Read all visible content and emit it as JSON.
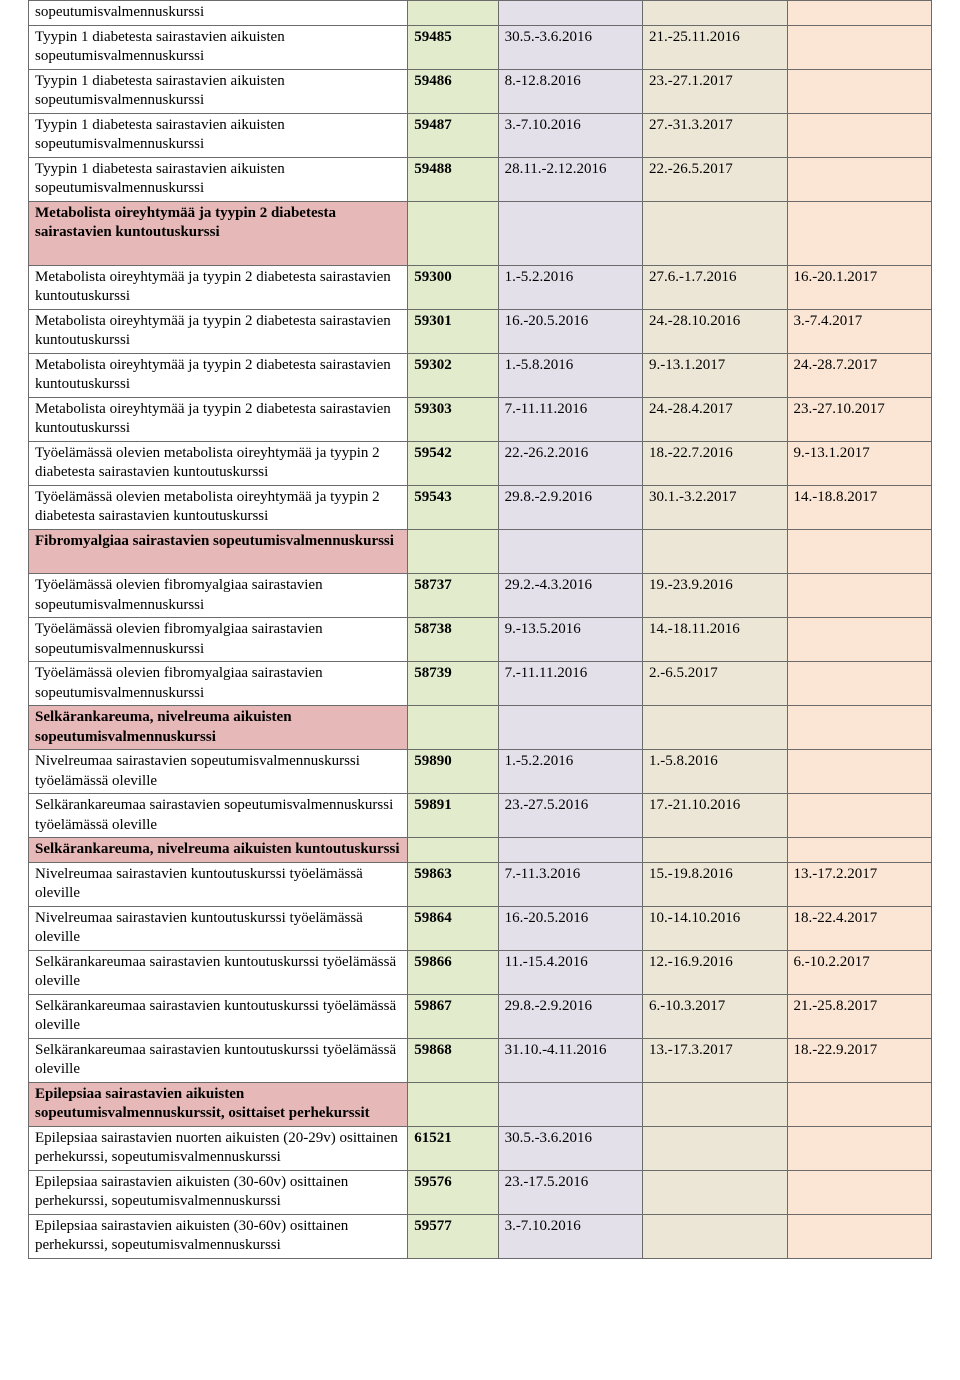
{
  "colors": {
    "col_id_bg": "#e2eccd",
    "col_d1_bg": "#e3e0ea",
    "col_d2_bg": "#ece6d6",
    "col_d3_bg": "#fbe6d5",
    "section_bg": "#e6b8b7",
    "name_bg": "#ffffff"
  },
  "rows": [
    {
      "type": "data",
      "name": "sopeutumisvalmennuskurssi",
      "id": "",
      "d1": "",
      "d2": "",
      "d3": ""
    },
    {
      "type": "data",
      "name": "Tyypin 1 diabetesta sairastavien aikuisten sopeutumisvalmennuskurssi",
      "id": "59485",
      "d1": "30.5.-3.6.2016",
      "d2": "21.-25.11.2016",
      "d3": ""
    },
    {
      "type": "data",
      "name": "Tyypin 1 diabetesta sairastavien aikuisten sopeutumisvalmennuskurssi",
      "id": "59486",
      "d1": "8.-12.8.2016",
      "d2": "23.-27.1.2017",
      "d3": ""
    },
    {
      "type": "data",
      "name": "Tyypin 1 diabetesta sairastavien aikuisten sopeutumisvalmennuskurssi",
      "id": "59487",
      "d1": "3.-7.10.2016",
      "d2": "27.-31.3.2017",
      "d3": ""
    },
    {
      "type": "data",
      "name": "Tyypin 1 diabetesta sairastavien aikuisten sopeutumisvalmennuskurssi",
      "id": "59488",
      "d1": "28.11.-2.12.2016",
      "d2": "22.-26.5.2017",
      "d3": ""
    },
    {
      "type": "section",
      "name": "Metabolista oireyhtymää ja tyypin 2 diabetesta sairastavien kuntoutuskurssi",
      "tall": true
    },
    {
      "type": "data",
      "name": "Metabolista oireyhtymää ja tyypin 2 diabetesta sairastavien kuntoutuskurssi",
      "id": "59300",
      "d1": "1.-5.2.2016",
      "d2": "27.6.-1.7.2016",
      "d3": "16.-20.1.2017"
    },
    {
      "type": "data",
      "name": "Metabolista oireyhtymää ja tyypin 2 diabetesta sairastavien kuntoutuskurssi",
      "id": "59301",
      "d1": "16.-20.5.2016",
      "d2": "24.-28.10.2016",
      "d3": "3.-7.4.2017"
    },
    {
      "type": "data",
      "name": "Metabolista oireyhtymää ja tyypin 2 diabetesta sairastavien kuntoutuskurssi",
      "id": "59302",
      "d1": "1.-5.8.2016",
      "d2": "9.-13.1.2017",
      "d3": "24.-28.7.2017"
    },
    {
      "type": "data",
      "name": "Metabolista oireyhtymää ja tyypin 2 diabetesta sairastavien kuntoutuskurssi",
      "id": "59303",
      "d1": "7.-11.11.2016",
      "d2": "24.-28.4.2017",
      "d3": "23.-27.10.2017"
    },
    {
      "type": "data",
      "name": "Työelämässä olevien metabolista oireyhtymää ja tyypin 2 diabetesta sairastavien kuntoutuskurssi",
      "id": "59542",
      "d1": "22.-26.2.2016",
      "d2": "18.-22.7.2016",
      "d3": "9.-13.1.2017"
    },
    {
      "type": "data",
      "name": "Työelämässä olevien metabolista oireyhtymää ja tyypin 2 diabetesta sairastavien kuntoutuskurssi",
      "id": "59543",
      "d1": "29.8.-2.9.2016",
      "d2": "30.1.-3.2.2017",
      "d3": "14.-18.8.2017"
    },
    {
      "type": "section",
      "name": "Fibromyalgiaa sairastavien sopeutumisvalmennuskurssi",
      "tall": true
    },
    {
      "type": "data",
      "name": "Työelämässä olevien fibromyalgiaa sairastavien sopeutumisvalmennuskurssi",
      "id": "58737",
      "d1": "29.2.-4.3.2016",
      "d2": "19.-23.9.2016",
      "d3": ""
    },
    {
      "type": "data",
      "name": "Työelämässä olevien fibromyalgiaa sairastavien sopeutumisvalmennuskurssi",
      "id": "58738",
      "d1": "9.-13.5.2016",
      "d2": "14.-18.11.2016",
      "d3": ""
    },
    {
      "type": "data",
      "name": "Työelämässä olevien fibromyalgiaa sairastavien sopeutumisvalmennuskurssi",
      "id": "58739",
      "d1": "7.-11.11.2016",
      "d2": "2.-6.5.2017",
      "d3": ""
    },
    {
      "type": "section",
      "name": "Selkärankareuma, nivelreuma aikuisten sopeutumisvalmennuskurssi"
    },
    {
      "type": "data",
      "name": "Nivelreumaa sairastavien sopeutumisvalmennuskurssi työelämässä oleville",
      "id": "59890",
      "d1": "1.-5.2.2016",
      "d2": "1.-5.8.2016",
      "d3": ""
    },
    {
      "type": "data",
      "name": "Selkärankareumaa sairastavien sopeutumisvalmennuskurssi työelämässä oleville",
      "id": "59891",
      "d1": "23.-27.5.2016",
      "d2": "17.-21.10.2016",
      "d3": ""
    },
    {
      "type": "section",
      "name": "Selkärankareuma, nivelreuma aikuisten kuntoutuskurssi"
    },
    {
      "type": "data",
      "name": "Nivelreumaa sairastavien kuntoutuskurssi työelämässä oleville",
      "id": "59863",
      "d1": "7.-11.3.2016",
      "d2": "15.-19.8.2016",
      "d3": "13.-17.2.2017"
    },
    {
      "type": "data",
      "name": "Nivelreumaa sairastavien kuntoutuskurssi työelämässä oleville",
      "id": "59864",
      "d1": "16.-20.5.2016",
      "d2": "10.-14.10.2016",
      "d3": "18.-22.4.2017"
    },
    {
      "type": "data",
      "name": "Selkärankareumaa sairastavien kuntoutuskurssi työelämässä oleville",
      "id": "59866",
      "d1": "11.-15.4.2016",
      "d2": "12.-16.9.2016",
      "d3": "6.-10.2.2017"
    },
    {
      "type": "data",
      "name": "Selkärankareumaa sairastavien kuntoutuskurssi työelämässä oleville",
      "id": "59867",
      "d1": "29.8.-2.9.2016",
      "d2": "6.-10.3.2017",
      "d3": "21.-25.8.2017"
    },
    {
      "type": "data",
      "name": "Selkärankareumaa sairastavien kuntoutuskurssi työelämässä oleville",
      "id": "59868",
      "d1": "31.10.-4.11.2016",
      "d2": "13.-17.3.2017",
      "d3": "18.-22.9.2017"
    },
    {
      "type": "section",
      "name": "Epilepsiaa sairastavien aikuisten sopeutumisvalmennuskurssit, osittaiset perhekurssit"
    },
    {
      "type": "data",
      "name": "Epilepsiaa sairastavien nuorten aikuisten (20-29v) osittainen perhekurssi, sopeutumisvalmennuskurssi",
      "id": "61521",
      "d1": "30.5.-3.6.2016",
      "d2": "",
      "d3": ""
    },
    {
      "type": "data",
      "name": "Epilepsiaa sairastavien aikuisten (30-60v) osittainen perhekurssi, sopeutumisvalmennuskurssi",
      "id": "59576",
      "d1": "23.-17.5.2016",
      "d2": "",
      "d3": ""
    },
    {
      "type": "data",
      "name": "Epilepsiaa sairastavien aikuisten (30-60v) osittainen perhekurssi, sopeutumisvalmennuskurssi",
      "id": "59577",
      "d1": "3.-7.10.2016",
      "d2": "",
      "d3": ""
    }
  ]
}
